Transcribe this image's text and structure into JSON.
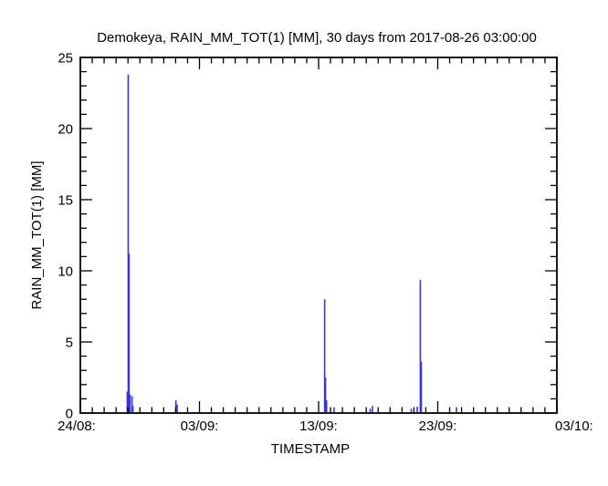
{
  "chart_data": {
    "type": "line",
    "subtype": "rain-spike-timeseries",
    "title": "Demokeya, RAIN_MM_TOT(1) [MM], 30 days from  2017-08-26 03:00:00",
    "xlabel": "TIMESTAMP",
    "ylabel": "RAIN_MM_TOT(1) [MM]",
    "xlim_days": [
      0,
      40
    ],
    "ylim": [
      0,
      25
    ],
    "x_axis_start_date": "24/08",
    "x_major_ticks": [
      {
        "day": 0,
        "label": "24/08:"
      },
      {
        "day": 10,
        "label": "03/09:"
      },
      {
        "day": 20,
        "label": "13/09:"
      },
      {
        "day": 30,
        "label": "23/09:"
      },
      {
        "day": 40,
        "label": "03/10:"
      }
    ],
    "x_minor_step_days": 1,
    "y_major_ticks": [
      {
        "value": 0,
        "label": "0"
      },
      {
        "value": 5,
        "label": "5"
      },
      {
        "value": 10,
        "label": "10"
      },
      {
        "value": 15,
        "label": "15"
      },
      {
        "value": 20,
        "label": "20"
      },
      {
        "value": 25,
        "label": "25"
      }
    ],
    "y_minor_step": 1,
    "grid": "off",
    "legend": "none",
    "frame": "box-with-inward-ticks",
    "line_color": "#3535d8",
    "axis_color": "#000000",
    "background_color": "#ffffff",
    "series": [
      {
        "name": "RAIN_MM_TOT(1)",
        "units": "MM",
        "points_day_value": [
          [
            3.94,
            1.5
          ],
          [
            4.02,
            23.8
          ],
          [
            4.09,
            11.2
          ],
          [
            4.17,
            1.3
          ],
          [
            4.34,
            1.2
          ],
          [
            4.41,
            0.5
          ],
          [
            8.02,
            0.9
          ],
          [
            8.12,
            0.6
          ],
          [
            20.51,
            8.0
          ],
          [
            20.58,
            2.5
          ],
          [
            20.67,
            0.9
          ],
          [
            21.3,
            0.4
          ],
          [
            24.33,
            0.3
          ],
          [
            24.52,
            0.5
          ],
          [
            27.78,
            0.3
          ],
          [
            28.28,
            0.45
          ],
          [
            28.54,
            9.35
          ],
          [
            28.62,
            3.6
          ],
          [
            31.57,
            0.4
          ]
        ]
      }
    ]
  }
}
